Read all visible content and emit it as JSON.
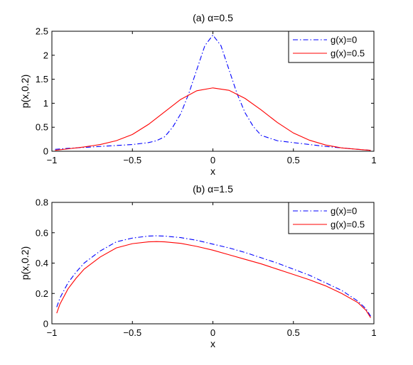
{
  "chart_data": [
    {
      "type": "line",
      "title": "(a) α=0.5",
      "xlabel": "x",
      "ylabel": "p(x,0.2)",
      "xlim": [
        -1,
        1
      ],
      "ylim": [
        0,
        2.5
      ],
      "xticks": [
        "−1",
        "−0.5",
        "0",
        "0.5",
        "1"
      ],
      "yticks": [
        "0",
        "0.5",
        "1",
        "1.5",
        "2",
        "2.5"
      ],
      "legend": "top-right",
      "grid": false,
      "series": [
        {
          "name": "g(x)=0",
          "color": "#0000ff",
          "style": "dashdot",
          "x": [
            -0.98,
            -0.9,
            -0.8,
            -0.7,
            -0.6,
            -0.5,
            -0.4,
            -0.35,
            -0.3,
            -0.25,
            -0.2,
            -0.15,
            -0.1,
            -0.05,
            0,
            0.05,
            0.1,
            0.15,
            0.2,
            0.25,
            0.3,
            0.4,
            0.5,
            0.6,
            0.7,
            0.8,
            0.9,
            0.98
          ],
          "y": [
            0.04,
            0.06,
            0.08,
            0.1,
            0.12,
            0.14,
            0.18,
            0.22,
            0.3,
            0.5,
            0.78,
            1.2,
            1.7,
            2.2,
            2.42,
            2.2,
            1.7,
            1.2,
            0.8,
            0.52,
            0.33,
            0.22,
            0.18,
            0.14,
            0.1,
            0.07,
            0.04,
            0.02
          ]
        },
        {
          "name": "g(x)=0.5",
          "color": "#ff0000",
          "style": "solid",
          "x": [
            -0.98,
            -0.9,
            -0.8,
            -0.7,
            -0.6,
            -0.5,
            -0.4,
            -0.3,
            -0.2,
            -0.1,
            0,
            0.1,
            0.2,
            0.3,
            0.4,
            0.5,
            0.6,
            0.7,
            0.8,
            0.9,
            0.98
          ],
          "y": [
            0.02,
            0.05,
            0.09,
            0.14,
            0.22,
            0.35,
            0.56,
            0.82,
            1.08,
            1.26,
            1.32,
            1.27,
            1.1,
            0.86,
            0.6,
            0.38,
            0.23,
            0.13,
            0.07,
            0.04,
            0.02
          ]
        }
      ]
    },
    {
      "type": "line",
      "title": "(b) α=1.5",
      "xlabel": "x",
      "ylabel": "p(x,0.2)",
      "xlim": [
        -1,
        1
      ],
      "ylim": [
        0,
        0.8
      ],
      "xticks": [
        "−1",
        "−0.5",
        "0",
        "0.5",
        "1"
      ],
      "yticks": [
        "0",
        "0.2",
        "0.4",
        "0.6",
        "0.8"
      ],
      "legend": "top-right",
      "grid": false,
      "series": [
        {
          "name": "g(x)=0",
          "color": "#0000ff",
          "style": "dashdot",
          "x": [
            -0.97,
            -0.95,
            -0.9,
            -0.85,
            -0.8,
            -0.7,
            -0.6,
            -0.5,
            -0.4,
            -0.35,
            -0.3,
            -0.2,
            -0.1,
            0,
            0.1,
            0.2,
            0.3,
            0.4,
            0.5,
            0.6,
            0.7,
            0.8,
            0.9,
            0.95,
            0.98
          ],
          "y": [
            0.11,
            0.17,
            0.27,
            0.34,
            0.4,
            0.48,
            0.54,
            0.565,
            0.578,
            0.58,
            0.578,
            0.568,
            0.55,
            0.525,
            0.5,
            0.47,
            0.435,
            0.4,
            0.36,
            0.32,
            0.27,
            0.22,
            0.15,
            0.1,
            0.05
          ]
        },
        {
          "name": "g(x)=0.5",
          "color": "#ff0000",
          "style": "solid",
          "x": [
            -0.97,
            -0.95,
            -0.9,
            -0.85,
            -0.8,
            -0.7,
            -0.6,
            -0.5,
            -0.4,
            -0.35,
            -0.3,
            -0.2,
            -0.1,
            0,
            0.1,
            0.2,
            0.3,
            0.4,
            0.5,
            0.6,
            0.7,
            0.8,
            0.9,
            0.95,
            0.98
          ],
          "y": [
            0.07,
            0.13,
            0.23,
            0.3,
            0.36,
            0.44,
            0.5,
            0.528,
            0.54,
            0.542,
            0.54,
            0.53,
            0.51,
            0.485,
            0.455,
            0.425,
            0.395,
            0.36,
            0.325,
            0.29,
            0.25,
            0.2,
            0.14,
            0.09,
            0.04
          ]
        }
      ]
    }
  ]
}
